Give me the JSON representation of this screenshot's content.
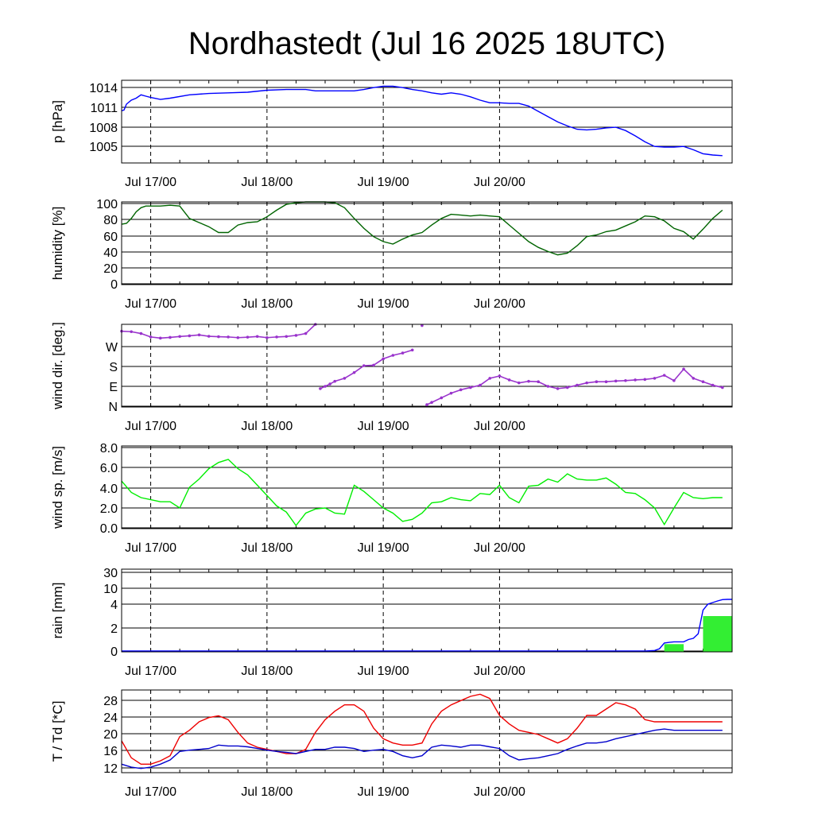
{
  "title": "Nordhastedt (Jul 16 2025 18UTC)",
  "chart_data": [
    {
      "type": "line",
      "ylabel": "p [hPa]",
      "xticks": [
        "Jul 17/00",
        "Jul 18/00",
        "Jul 19/00",
        "Jul 20/00"
      ],
      "yticks": [
        "1014",
        "1011",
        "1008",
        "1005"
      ],
      "ylim": [
        1002.5,
        1015
      ],
      "grid": "horizontal lines at y ticks, dashed vertical lines at day boundaries",
      "x_unit_note": "x values are hours from 2025-07-16 18UTC",
      "series": [
        {
          "color": "#0000ff",
          "x": [
            0,
            0.5,
            1,
            2,
            3,
            4,
            5,
            6,
            8,
            10,
            14,
            18,
            22,
            26,
            30,
            34,
            38,
            40,
            44,
            48,
            50,
            52,
            54,
            56,
            58,
            60,
            62,
            64,
            66,
            68,
            70,
            72,
            74,
            76,
            78,
            80,
            82,
            84,
            86,
            88,
            90,
            92,
            94,
            96,
            98,
            100,
            102,
            104,
            106,
            108,
            110,
            112,
            114,
            116,
            118,
            120,
            122,
            124
          ],
          "values": [
            1010.4,
            1010.5,
            1011.4,
            1012.0,
            1012.3,
            1012.8,
            1012.6,
            1012.4,
            1012.1,
            1012.3,
            1012.8,
            1013.0,
            1013.1,
            1013.2,
            1013.5,
            1013.6,
            1013.6,
            1013.4,
            1013.4,
            1013.4,
            1013.6,
            1013.9,
            1014.1,
            1014.1,
            1013.9,
            1013.6,
            1013.4,
            1013.1,
            1012.9,
            1013.1,
            1012.9,
            1012.5,
            1012.0,
            1011.6,
            1011.6,
            1011.5,
            1011.5,
            1011.1,
            1010.3,
            1009.5,
            1008.7,
            1008.1,
            1007.6,
            1007.5,
            1007.6,
            1007.8,
            1007.9,
            1007.4,
            1006.6,
            1005.7,
            1005.0,
            1004.9,
            1004.9,
            1005.0,
            1004.5,
            1003.9,
            1003.7,
            1003.6
          ]
        }
      ]
    },
    {
      "type": "line",
      "ylabel": "humidity [%]",
      "xticks": [
        "Jul 17/00",
        "Jul 18/00",
        "Jul 19/00",
        "Jul 20/00"
      ],
      "yticks": [
        "100",
        "80",
        "60",
        "40",
        "20",
        "0"
      ],
      "ylim": [
        0,
        100
      ],
      "series": [
        {
          "color": "#006400",
          "x": [
            0,
            1,
            2,
            3,
            4,
            5,
            6,
            8,
            10,
            12,
            14,
            16,
            18,
            20,
            22,
            24,
            26,
            28,
            30,
            32,
            34,
            36,
            38,
            40,
            42,
            44,
            46,
            48,
            50,
            52,
            54,
            56,
            58,
            60,
            62,
            64,
            66,
            68,
            70,
            72,
            74,
            76,
            78,
            80,
            82,
            84,
            86,
            88,
            90,
            92,
            94,
            96,
            98,
            100,
            102,
            104,
            106,
            108,
            110,
            112,
            114,
            116,
            118,
            120,
            122,
            124
          ],
          "values": [
            73,
            74,
            80,
            88,
            93,
            95,
            95,
            95,
            96,
            95,
            80,
            75,
            70,
            63,
            63,
            72,
            75,
            76,
            82,
            90,
            97,
            99,
            100,
            100,
            100,
            99,
            93,
            80,
            68,
            58,
            52,
            49,
            55,
            60,
            63,
            72,
            80,
            85,
            84,
            83,
            84,
            83,
            82,
            72,
            62,
            52,
            45,
            40,
            36,
            38,
            47,
            58,
            60,
            64,
            66,
            71,
            76,
            83,
            82,
            77,
            68,
            64,
            55,
            67,
            80,
            90
          ]
        }
      ]
    },
    {
      "type": "scatter",
      "ylabel": "wind dir. [deg.]",
      "xticks": [
        "Jul 17/00",
        "Jul 18/00",
        "Jul 19/00",
        "Jul 20/00"
      ],
      "yticks": [
        "W",
        "S",
        "E",
        "N"
      ],
      "ylim": [
        0,
        360
      ],
      "series": [
        {
          "color": "#9933cc",
          "x": [
            0,
            2,
            4,
            6,
            8,
            10,
            12,
            14,
            16,
            18,
            20,
            22,
            24,
            26,
            28,
            30,
            32,
            34,
            36,
            38,
            40,
            41,
            42,
            43,
            44,
            46,
            48,
            50,
            52,
            54,
            56,
            58,
            60,
            62,
            63,
            64,
            66,
            68,
            70,
            72,
            74,
            76,
            78,
            80,
            82,
            84,
            86,
            88,
            90,
            92,
            94,
            96,
            98,
            100,
            102,
            104,
            106,
            108,
            110,
            112,
            114,
            116,
            118,
            120,
            122,
            124
          ],
          "values": [
            330,
            328,
            320,
            305,
            300,
            303,
            307,
            310,
            314,
            308,
            306,
            305,
            302,
            304,
            307,
            302,
            305,
            307,
            312,
            320,
            360,
            80,
            90,
            100,
            112,
            125,
            150,
            180,
            182,
            210,
            225,
            235,
            248,
            355,
            10,
            20,
            40,
            60,
            75,
            85,
            95,
            125,
            135,
            118,
            105,
            112,
            110,
            90,
            80,
            85,
            95,
            105,
            110,
            110,
            113,
            115,
            118,
            120,
            125,
            138,
            115,
            165,
            125,
            110,
            95,
            85
          ]
        }
      ]
    },
    {
      "type": "line",
      "ylabel": "wind sp. [m/s]",
      "xticks": [
        "Jul 17/00",
        "Jul 18/00",
        "Jul 19/00",
        "Jul 20/00"
      ],
      "yticks": [
        "8.0",
        "6.0",
        "4.0",
        "2.0",
        "0.0"
      ],
      "ylim": [
        0,
        8
      ],
      "series": [
        {
          "color": "#00ee00",
          "x": [
            0,
            2,
            4,
            6,
            8,
            10,
            12,
            14,
            16,
            18,
            20,
            22,
            24,
            26,
            28,
            30,
            32,
            34,
            36,
            38,
            40,
            42,
            44,
            46,
            48,
            50,
            52,
            54,
            56,
            58,
            60,
            62,
            64,
            66,
            68,
            70,
            72,
            74,
            76,
            78,
            80,
            82,
            84,
            86,
            88,
            90,
            92,
            94,
            96,
            98,
            100,
            102,
            104,
            106,
            108,
            110,
            112,
            114,
            116,
            118,
            120,
            122,
            124
          ],
          "values": [
            4.6,
            3.5,
            3.0,
            2.8,
            2.6,
            2.6,
            2.0,
            4.0,
            4.8,
            5.8,
            6.4,
            6.7,
            5.8,
            5.2,
            4.2,
            3.2,
            2.2,
            1.6,
            0.3,
            1.5,
            1.9,
            2.0,
            1.5,
            1.4,
            4.2,
            3.6,
            2.8,
            2.0,
            1.5,
            0.7,
            0.9,
            1.5,
            2.5,
            2.6,
            3.0,
            2.8,
            2.7,
            3.4,
            3.3,
            4.2,
            3.0,
            2.5,
            4.1,
            4.2,
            4.8,
            4.5,
            5.3,
            4.8,
            4.7,
            4.7,
            4.9,
            4.3,
            3.5,
            3.4,
            2.8,
            2.0,
            0.4,
            2.0,
            3.5,
            3.0,
            2.9,
            3.0,
            3.0
          ]
        }
      ]
    },
    {
      "type": "bar",
      "ylabel": "rain [mm]",
      "xticks": [
        "Jul 17/00",
        "Jul 18/00",
        "Jul 19/00",
        "Jul 20/00"
      ],
      "yticks": [
        "30",
        "10",
        "4",
        "2",
        "0"
      ],
      "ylim": [
        0,
        30
      ],
      "scale": "nonlinear",
      "bars": {
        "color": "#33ee33",
        "x_start": [
          112,
          120
        ],
        "x_end": [
          116,
          126
        ],
        "values": [
          0.6,
          3.0
        ]
      },
      "series": [
        {
          "name": "accumulated",
          "color": "#0000ff",
          "x": [
            0,
            108,
            110,
            111,
            112,
            113,
            114,
            115,
            116,
            117,
            118,
            119,
            120,
            121,
            122,
            123,
            124,
            125,
            126
          ],
          "values": [
            0,
            0,
            0.05,
            0.2,
            0.7,
            0.75,
            0.8,
            0.8,
            0.8,
            1.0,
            1.1,
            1.5,
            3.5,
            4.0,
            4.6,
            5.2,
            5.7,
            5.8,
            5.8
          ]
        }
      ]
    },
    {
      "type": "line",
      "ylabel": "T / Td [*C]",
      "xticks": [
        "Jul 17/00",
        "Jul 18/00",
        "Jul 19/00",
        "Jul 20/00"
      ],
      "yticks": [
        "28",
        "24",
        "20",
        "16",
        "12"
      ],
      "ylim": [
        10.5,
        30
      ],
      "series": [
        {
          "color": "#ee0000",
          "x": [
            0,
            2,
            4,
            6,
            8,
            10,
            12,
            14,
            16,
            18,
            20,
            22,
            24,
            26,
            28,
            30,
            32,
            34,
            36,
            38,
            40,
            42,
            44,
            46,
            48,
            50,
            52,
            54,
            56,
            58,
            60,
            62,
            64,
            66,
            68,
            70,
            72,
            74,
            76,
            78,
            80,
            82,
            84,
            86,
            88,
            90,
            92,
            94,
            96,
            98,
            100,
            102,
            104,
            106,
            108,
            110,
            112,
            114,
            116,
            118,
            120,
            122,
            124
          ],
          "values": [
            18,
            14,
            12.5,
            12.5,
            13.3,
            14.5,
            19,
            20.5,
            22.5,
            23.5,
            23.9,
            23,
            20,
            17.5,
            16.5,
            16,
            15.5,
            15,
            15,
            16,
            20,
            23,
            25,
            26.5,
            26.5,
            25,
            21,
            18.5,
            17.5,
            17,
            17,
            17.5,
            22,
            25,
            26.5,
            27.5,
            28.5,
            29,
            28,
            24,
            22,
            20.5,
            20,
            19.5,
            18.5,
            17.5,
            18.5,
            21,
            24,
            24,
            25.5,
            27,
            26.5,
            25.5,
            23,
            22.5,
            22.5,
            22.5,
            22.5,
            22.5,
            22.5,
            22.5,
            22.5
          ]
        },
        {
          "color": "#0000cc",
          "x": [
            0,
            2,
            4,
            6,
            8,
            10,
            12,
            14,
            16,
            18,
            20,
            22,
            24,
            26,
            28,
            30,
            32,
            34,
            36,
            38,
            40,
            42,
            44,
            46,
            48,
            50,
            52,
            54,
            56,
            58,
            60,
            62,
            64,
            66,
            68,
            70,
            72,
            74,
            76,
            78,
            80,
            82,
            84,
            86,
            88,
            90,
            92,
            94,
            96,
            98,
            100,
            102,
            104,
            106,
            108,
            110,
            112,
            114,
            116,
            118,
            120,
            122,
            124
          ],
          "values": [
            12.5,
            11.8,
            11.5,
            11.8,
            12.5,
            13.5,
            15.5,
            15.8,
            16,
            16.2,
            17,
            16.8,
            16.8,
            16.6,
            16.2,
            15.8,
            15.5,
            15.3,
            15,
            15.5,
            16,
            16,
            16.5,
            16.5,
            16.2,
            15.5,
            15.8,
            16,
            15.5,
            14.5,
            14,
            14.5,
            16.5,
            17,
            16.8,
            16.5,
            17,
            17,
            16.6,
            16.2,
            14.5,
            13.5,
            13.8,
            14,
            14.5,
            15,
            16,
            16.8,
            17.5,
            17.5,
            17.8,
            18.5,
            19,
            19.5,
            20,
            20.5,
            20.8,
            20.5,
            20.5,
            20.5,
            20.5,
            20.5,
            20.5
          ]
        }
      ]
    }
  ]
}
